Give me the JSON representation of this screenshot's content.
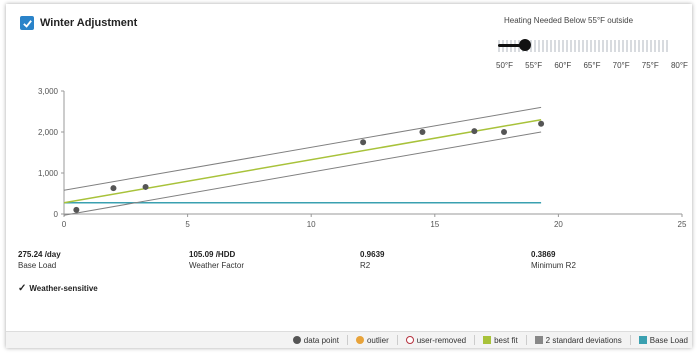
{
  "header": {
    "title": "Winter Adjustment",
    "checked": true
  },
  "slider": {
    "caption": "Heating Needed Below 55°F outside",
    "value": "55°F",
    "labels": [
      "50°F",
      "55°F",
      "60°F",
      "65°F",
      "70°F",
      "75°F",
      "80°F"
    ]
  },
  "chart_data": {
    "type": "scatter",
    "xlim": [
      0,
      25
    ],
    "ylim": [
      0,
      3000
    ],
    "x_ticks": [
      "0",
      "5",
      "10",
      "15",
      "20",
      "25"
    ],
    "y_ticks": [
      "0",
      "1,000",
      "2,000",
      "3,000"
    ],
    "points": [
      {
        "x": 0.5,
        "y": 100
      },
      {
        "x": 2.0,
        "y": 630
      },
      {
        "x": 3.3,
        "y": 660
      },
      {
        "x": 12.1,
        "y": 1750
      },
      {
        "x": 14.5,
        "y": 2000
      },
      {
        "x": 16.6,
        "y": 2020
      },
      {
        "x": 17.8,
        "y": 2000
      },
      {
        "x": 19.3,
        "y": 2200
      }
    ],
    "best_fit": {
      "x": [
        0,
        19.3
      ],
      "y": [
        275,
        2300
      ]
    },
    "upper_band": {
      "x": [
        0,
        19.3
      ],
      "y": [
        580,
        2600
      ]
    },
    "lower_band": {
      "x": [
        0,
        19.3
      ],
      "y": [
        -30,
        2000
      ]
    },
    "base_load": {
      "x": [
        0,
        19.3
      ],
      "y": [
        275,
        275
      ]
    },
    "colors": {
      "point": "#555555",
      "best_fit": "#a8c23a",
      "band": "#808080",
      "base_load": "#3aa0b0",
      "outlier": "#e8a33a",
      "removed": "#b6323f"
    }
  },
  "stats": [
    {
      "value": "275.24 /day",
      "label": "Base Load"
    },
    {
      "value": "105.09 /HDD",
      "label": "Weather Factor"
    },
    {
      "value": "0.9639",
      "label": "R2"
    },
    {
      "value": "0.3869",
      "label": "Minimum R2"
    }
  ],
  "weather_sensitive": "Weather-sensitive",
  "legend": [
    {
      "label": "data point",
      "color": "#555555",
      "shape": "circle"
    },
    {
      "label": "outlier",
      "color": "#e8a33a",
      "shape": "circle"
    },
    {
      "label": "user-removed",
      "color": "#b6323f",
      "shape": "ring"
    },
    {
      "label": "best fit",
      "color": "#a8c23a",
      "shape": "square"
    },
    {
      "label": "2 standard deviations",
      "color": "#888888",
      "shape": "square"
    },
    {
      "label": "Base Load",
      "color": "#3aa0b0",
      "shape": "square"
    }
  ]
}
